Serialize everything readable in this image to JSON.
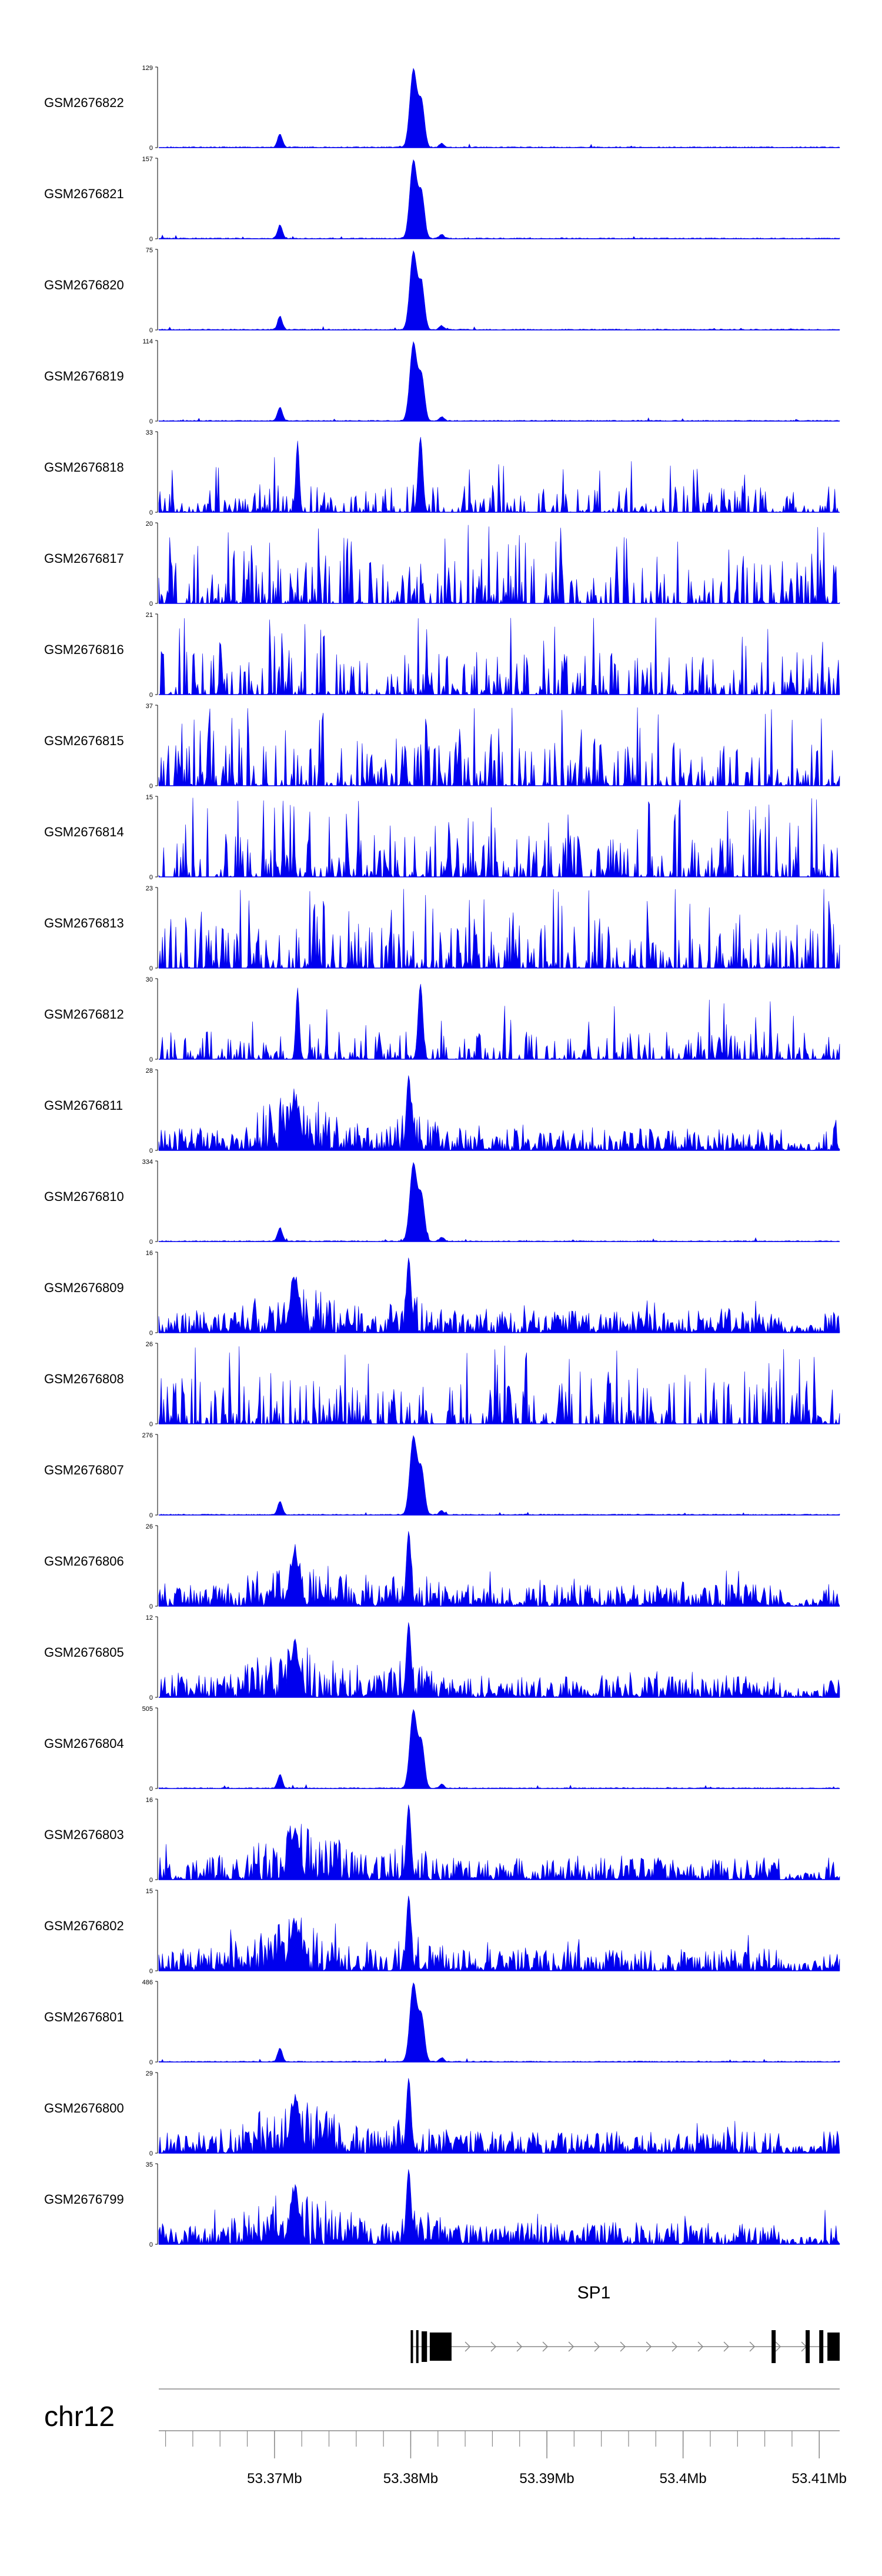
{
  "chart_data": {
    "type": "area",
    "title": "",
    "color": "#0000ee",
    "x_range_mb": [
      53.3615,
      53.4115
    ],
    "peak_center_mb": 53.3802,
    "secondary_peak_mb": 53.3704,
    "tracks": [
      {
        "name": "GSM2676822",
        "ymax": "129",
        "profile": "tf"
      },
      {
        "name": "GSM2676821",
        "ymax": "157",
        "profile": "tf"
      },
      {
        "name": "GSM2676820",
        "ymax": "75",
        "profile": "tf"
      },
      {
        "name": "GSM2676819",
        "ymax": "114",
        "profile": "tf"
      },
      {
        "name": "GSM2676818",
        "ymax": "33",
        "profile": "sparse"
      },
      {
        "name": "GSM2676817",
        "ymax": "20",
        "profile": "noise"
      },
      {
        "name": "GSM2676816",
        "ymax": "21",
        "profile": "noise"
      },
      {
        "name": "GSM2676815",
        "ymax": "37",
        "profile": "noise"
      },
      {
        "name": "GSM2676814",
        "ymax": "15",
        "profile": "noise"
      },
      {
        "name": "GSM2676813",
        "ymax": "23",
        "profile": "noise"
      },
      {
        "name": "GSM2676812",
        "ymax": "30",
        "profile": "sparse"
      },
      {
        "name": "GSM2676811",
        "ymax": "28",
        "profile": "dense"
      },
      {
        "name": "GSM2676810",
        "ymax": "334",
        "profile": "tf"
      },
      {
        "name": "GSM2676809",
        "ymax": "16",
        "profile": "dense"
      },
      {
        "name": "GSM2676808",
        "ymax": "26",
        "profile": "noise"
      },
      {
        "name": "GSM2676807",
        "ymax": "276",
        "profile": "tf"
      },
      {
        "name": "GSM2676806",
        "ymax": "26",
        "profile": "dense"
      },
      {
        "name": "GSM2676805",
        "ymax": "12",
        "profile": "dense"
      },
      {
        "name": "GSM2676804",
        "ymax": "505",
        "profile": "tf"
      },
      {
        "name": "GSM2676803",
        "ymax": "16",
        "profile": "dense"
      },
      {
        "name": "GSM2676802",
        "ymax": "15",
        "profile": "dense"
      },
      {
        "name": "GSM2676801",
        "ymax": "486",
        "profile": "tf"
      },
      {
        "name": "GSM2676800",
        "ymax": "29",
        "profile": "dense"
      },
      {
        "name": "GSM2676799",
        "ymax": "35",
        "profile": "dense"
      }
    ],
    "y_min_label": "0",
    "gene": {
      "name": "SP1",
      "start_mb": 53.38,
      "end_mb": 53.4115,
      "exons_mb": [
        [
          53.38,
          53.3801
        ],
        [
          53.3804,
          53.3805
        ],
        [
          53.3808,
          53.3812
        ],
        [
          53.3814,
          53.383
        ],
        [
          53.4065,
          53.4068
        ],
        [
          53.409,
          53.4093
        ],
        [
          53.41,
          53.4103
        ],
        [
          53.4106,
          53.4115
        ]
      ]
    },
    "chromosome": "chr12",
    "x_ticks": [
      {
        "value": 53.37,
        "label": "53.37Mb"
      },
      {
        "value": 53.38,
        "label": "53.38Mb"
      },
      {
        "value": 53.39,
        "label": "53.39Mb"
      },
      {
        "value": 53.4,
        "label": "53.4Mb"
      },
      {
        "value": 53.41,
        "label": "53.41Mb"
      }
    ],
    "minor_tick_step_mb": 0.002
  }
}
